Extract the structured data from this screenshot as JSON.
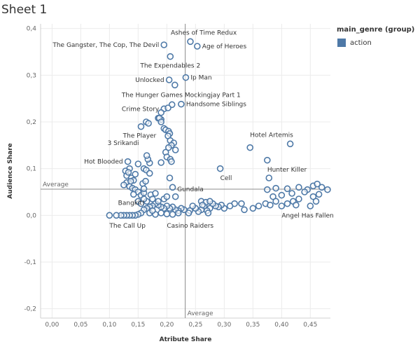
{
  "sheet": {
    "title": "Sheet 1"
  },
  "legend": {
    "title": "main_genre (group)",
    "items": [
      {
        "label": "action",
        "color": "#4e79a7"
      }
    ]
  },
  "chart_data": {
    "type": "scatter",
    "xlabel": "Atribute Share",
    "ylabel": "Audience Share",
    "xlim": [
      -0.02,
      0.485
    ],
    "ylim": [
      -0.22,
      0.41
    ],
    "xticks": [
      0.0,
      0.05,
      0.1,
      0.15,
      0.2,
      0.25,
      0.3,
      0.35,
      0.4,
      0.45
    ],
    "xtick_labels": [
      "0,00",
      "0,05",
      "0,10",
      "0,15",
      "0,20",
      "0,25",
      "0,30",
      "0,35",
      "0,40",
      "0,45"
    ],
    "yticks": [
      0.4,
      0.3,
      0.2,
      0.1,
      0.0,
      -0.1,
      -0.2
    ],
    "ytick_labels": [
      "0,4",
      "0,3",
      "0,2",
      "0,1",
      "0,0",
      "-0,1",
      "-0,2"
    ],
    "grid": true,
    "marker_color": "#4e79a7",
    "reference_lines": {
      "x": {
        "value": 0.232,
        "label": "Average"
      },
      "y": {
        "value": 0.056,
        "label": "Average"
      }
    },
    "series": [
      {
        "name": "action",
        "points": [
          [
            0.195,
            0.365
          ],
          [
            0.241,
            0.372
          ],
          [
            0.253,
            0.362
          ],
          [
            0.206,
            0.34
          ],
          [
            0.204,
            0.29
          ],
          [
            0.214,
            0.279
          ],
          [
            0.233,
            0.295
          ],
          [
            0.225,
            0.238
          ],
          [
            0.209,
            0.237
          ],
          [
            0.195,
            0.228
          ],
          [
            0.202,
            0.23
          ],
          [
            0.19,
            0.22
          ],
          [
            0.19,
            0.205
          ],
          [
            0.185,
            0.208
          ],
          [
            0.187,
            0.208
          ],
          [
            0.19,
            0.2
          ],
          [
            0.164,
            0.2
          ],
          [
            0.168,
            0.197
          ],
          [
            0.155,
            0.19
          ],
          [
            0.195,
            0.186
          ],
          [
            0.198,
            0.183
          ],
          [
            0.203,
            0.18
          ],
          [
            0.205,
            0.175
          ],
          [
            0.202,
            0.17
          ],
          [
            0.206,
            0.16
          ],
          [
            0.212,
            0.155
          ],
          [
            0.208,
            0.15
          ],
          [
            0.203,
            0.145
          ],
          [
            0.215,
            0.14
          ],
          [
            0.198,
            0.135
          ],
          [
            0.2,
            0.125
          ],
          [
            0.206,
            0.12
          ],
          [
            0.208,
            0.115
          ],
          [
            0.19,
            0.113
          ],
          [
            0.17,
            0.112
          ],
          [
            0.167,
            0.12
          ],
          [
            0.165,
            0.128
          ],
          [
            0.15,
            0.11
          ],
          [
            0.16,
            0.1
          ],
          [
            0.164,
            0.097
          ],
          [
            0.17,
            0.09
          ],
          [
            0.132,
            0.115
          ],
          [
            0.135,
            0.1
          ],
          [
            0.128,
            0.095
          ],
          [
            0.13,
            0.085
          ],
          [
            0.138,
            0.08
          ],
          [
            0.142,
            0.075
          ],
          [
            0.13,
            0.07
          ],
          [
            0.125,
            0.065
          ],
          [
            0.135,
            0.062
          ],
          [
            0.14,
            0.058
          ],
          [
            0.145,
            0.055
          ],
          [
            0.15,
            0.05
          ],
          [
            0.142,
            0.045
          ],
          [
            0.155,
            0.043
          ],
          [
            0.16,
            0.048
          ],
          [
            0.172,
            0.044
          ],
          [
            0.18,
            0.047
          ],
          [
            0.158,
            0.068
          ],
          [
            0.163,
            0.073
          ],
          [
            0.21,
            0.06
          ],
          [
            0.215,
            0.04
          ],
          [
            0.205,
            0.08
          ],
          [
            0.133,
            0.092
          ],
          [
            0.137,
            0.073
          ],
          [
            0.145,
            0.088
          ],
          [
            0.16,
            0.057
          ],
          [
            0.345,
            0.145
          ],
          [
            0.415,
            0.153
          ],
          [
            0.375,
            0.118
          ],
          [
            0.293,
            0.1
          ],
          [
            0.378,
            0.08
          ],
          [
            0.375,
            0.055
          ],
          [
            0.39,
            0.058
          ],
          [
            0.41,
            0.057
          ],
          [
            0.43,
            0.06
          ],
          [
            0.445,
            0.055
          ],
          [
            0.455,
            0.063
          ],
          [
            0.462,
            0.067
          ],
          [
            0.47,
            0.06
          ],
          [
            0.48,
            0.055
          ],
          [
            0.44,
            0.05
          ],
          [
            0.418,
            0.047
          ],
          [
            0.4,
            0.043
          ],
          [
            0.385,
            0.04
          ],
          [
            0.39,
            0.03
          ],
          [
            0.372,
            0.025
          ],
          [
            0.4,
            0.02
          ],
          [
            0.42,
            0.03
          ],
          [
            0.43,
            0.035
          ],
          [
            0.455,
            0.04
          ],
          [
            0.465,
            0.045
          ],
          [
            0.46,
            0.03
          ],
          [
            0.45,
            0.02
          ],
          [
            0.425,
            0.022
          ],
          [
            0.41,
            0.025
          ],
          [
            0.38,
            0.022
          ],
          [
            0.36,
            0.02
          ],
          [
            0.35,
            0.015
          ],
          [
            0.335,
            0.012
          ],
          [
            0.33,
            0.025
          ],
          [
            0.318,
            0.025
          ],
          [
            0.31,
            0.02
          ],
          [
            0.3,
            0.015
          ],
          [
            0.295,
            0.022
          ],
          [
            0.29,
            0.018
          ],
          [
            0.285,
            0.02
          ],
          [
            0.28,
            0.025
          ],
          [
            0.275,
            0.015
          ],
          [
            0.27,
            0.01
          ],
          [
            0.265,
            0.02
          ],
          [
            0.26,
            0.012
          ],
          [
            0.255,
            0.008
          ],
          [
            0.25,
            0.015
          ],
          [
            0.245,
            0.02
          ],
          [
            0.24,
            0.01
          ],
          [
            0.238,
            0.005
          ],
          [
            0.23,
            0.012
          ],
          [
            0.225,
            0.015
          ],
          [
            0.22,
            0.01
          ],
          [
            0.215,
            0.012
          ],
          [
            0.21,
            0.018
          ],
          [
            0.205,
            0.015
          ],
          [
            0.2,
            0.02
          ],
          [
            0.195,
            0.015
          ],
          [
            0.19,
            0.018
          ],
          [
            0.185,
            0.022
          ],
          [
            0.18,
            0.025
          ],
          [
            0.175,
            0.02
          ],
          [
            0.17,
            0.018
          ],
          [
            0.165,
            0.015
          ],
          [
            0.16,
            0.012
          ],
          [
            0.155,
            0.005
          ],
          [
            0.15,
            0.002
          ],
          [
            0.145,
            0.0
          ],
          [
            0.14,
            0.0
          ],
          [
            0.135,
            0.0
          ],
          [
            0.13,
            0.0
          ],
          [
            0.125,
            0.0
          ],
          [
            0.12,
            0.0
          ],
          [
            0.112,
            0.0
          ],
          [
            0.1,
            0.0
          ],
          [
            0.165,
            0.03
          ],
          [
            0.175,
            0.035
          ],
          [
            0.185,
            0.03
          ],
          [
            0.195,
            0.035
          ],
          [
            0.2,
            0.04
          ],
          [
            0.18,
            0.002
          ],
          [
            0.19,
            0.005
          ],
          [
            0.2,
            0.003
          ],
          [
            0.21,
            0.002
          ],
          [
            0.22,
            0.005
          ],
          [
            0.26,
            0.03
          ],
          [
            0.268,
            0.028
          ],
          [
            0.275,
            0.03
          ],
          [
            0.262,
            0.022
          ],
          [
            0.272,
            0.005
          ],
          [
            0.15,
            0.03
          ],
          [
            0.155,
            0.025
          ],
          [
            0.16,
            0.035
          ],
          [
            0.17,
            0.005
          ],
          [
            0.175,
            0.01
          ]
        ]
      }
    ],
    "annotations": [
      {
        "text": "The Gangster, The Cop, The Devil",
        "x": 0.195,
        "y": 0.365,
        "pos": "left"
      },
      {
        "text": "Ashes of Time Redux",
        "x": 0.241,
        "y": 0.372,
        "pos": "above-right"
      },
      {
        "text": "Age of Heroes",
        "x": 0.253,
        "y": 0.362,
        "pos": "right"
      },
      {
        "text": "The Expendables 2",
        "x": 0.206,
        "y": 0.34,
        "pos": "below"
      },
      {
        "text": "Unlocked",
        "x": 0.204,
        "y": 0.29,
        "pos": "left"
      },
      {
        "text": "Ip Man",
        "x": 0.233,
        "y": 0.295,
        "pos": "right"
      },
      {
        "text": "The Hunger Games Mockingjay Part 1",
        "x": 0.225,
        "y": 0.238,
        "pos": "above"
      },
      {
        "text": "Handsome Siblings",
        "x": 0.225,
        "y": 0.238,
        "pos": "right"
      },
      {
        "text": "Crime Story",
        "x": 0.195,
        "y": 0.228,
        "pos": "left"
      },
      {
        "text": "The Player",
        "x": 0.155,
        "y": 0.19,
        "pos": "below-left"
      },
      {
        "text": "3 Srikandi",
        "x": 0.16,
        "y": 0.155,
        "pos": "left"
      },
      {
        "text": "Hot Blooded",
        "x": 0.132,
        "y": 0.115,
        "pos": "left"
      },
      {
        "text": "Hotel Artemis",
        "x": 0.345,
        "y": 0.172,
        "pos": "label"
      },
      {
        "text": "Hunter Killer",
        "x": 0.375,
        "y": 0.098,
        "pos": "label"
      },
      {
        "text": "Cell",
        "x": 0.293,
        "y": 0.08,
        "pos": "label"
      },
      {
        "text": "Gundala",
        "x": 0.218,
        "y": 0.056,
        "pos": "label"
      },
      {
        "text": "Bangkit!",
        "x": 0.115,
        "y": 0.027,
        "pos": "label"
      },
      {
        "text": "The Call Up",
        "x": 0.1,
        "y": -0.022,
        "pos": "label"
      },
      {
        "text": "Casino Raiders",
        "x": 0.2,
        "y": -0.022,
        "pos": "label"
      },
      {
        "text": "Angel Has Fallen",
        "x": 0.4,
        "y": 0.0,
        "pos": "label"
      }
    ]
  }
}
